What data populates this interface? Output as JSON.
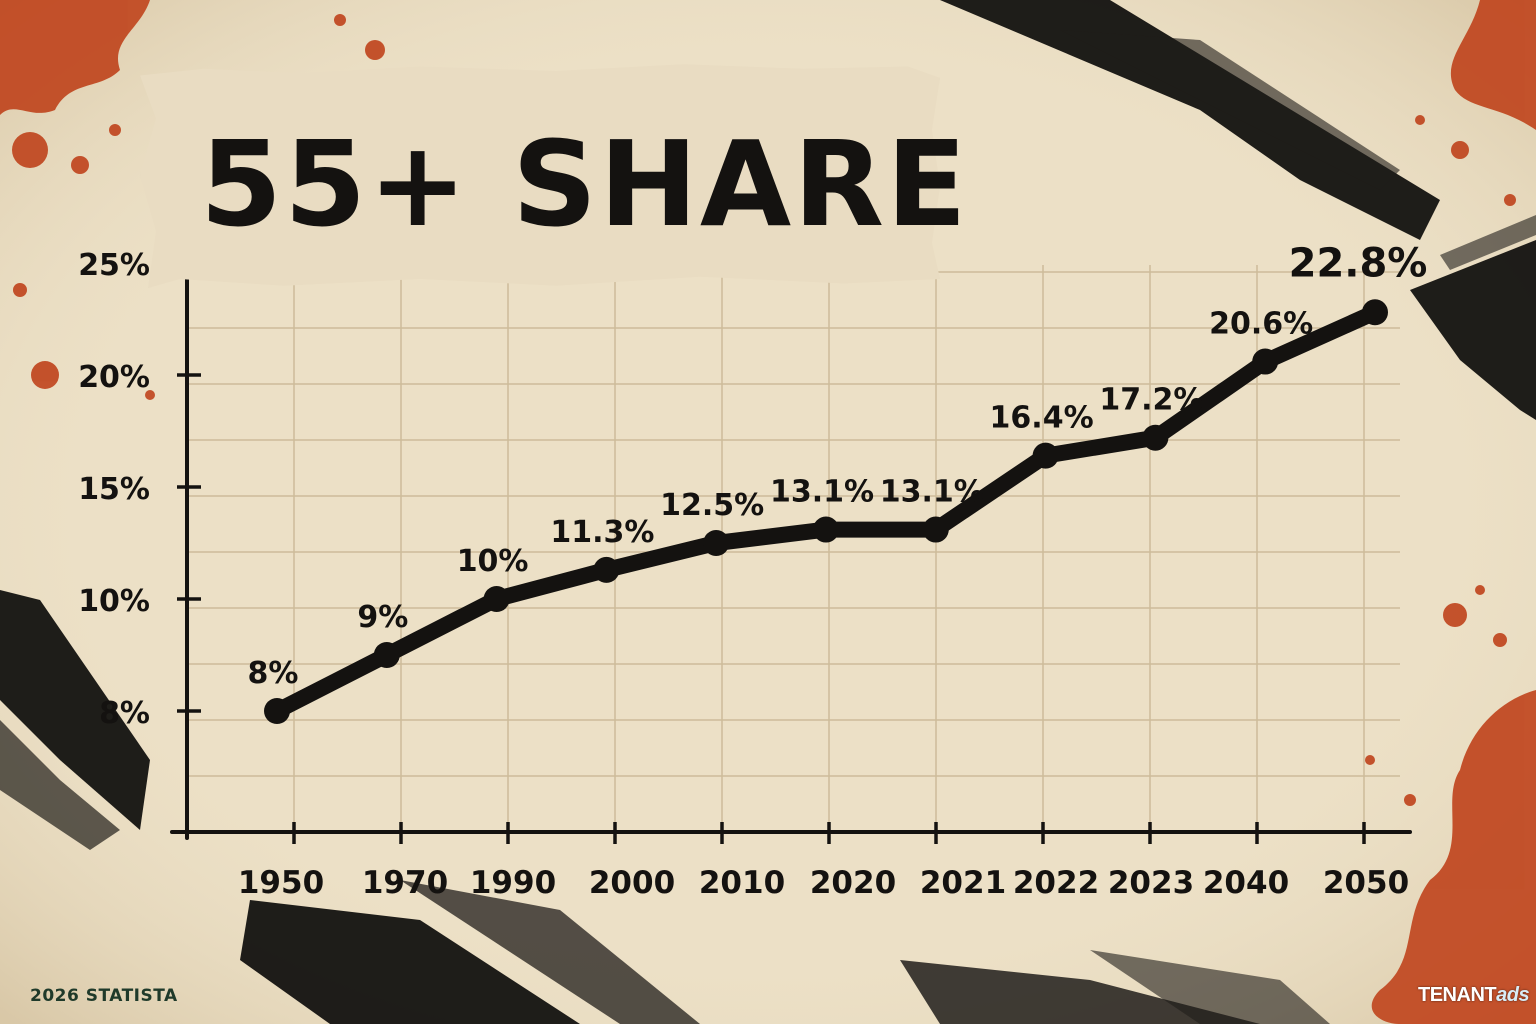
{
  "title": "55+ SHARE",
  "footer_source": "2026 STATISTA",
  "brand": {
    "name": "TENANT",
    "accent": "ads"
  },
  "colors": {
    "background": "#ece0c6",
    "line": "#141210",
    "splatter": "#c0461f",
    "brush": "#141210",
    "grid": "#cdbb9a"
  },
  "chart_data": {
    "type": "line",
    "title": "55+ SHARE",
    "xlabel": "",
    "ylabel": "",
    "categories": [
      "1950",
      "1970",
      "1990",
      "2000",
      "2010",
      "2020",
      "2021",
      "2022",
      "2023",
      "2040",
      "2050"
    ],
    "y_tick_labels": [
      "8%",
      "10%",
      "15%",
      "20%",
      "25%"
    ],
    "y_tick_values": [
      8,
      10,
      15,
      20,
      25
    ],
    "grid": true,
    "points": [
      {
        "value": 8,
        "label": "8%"
      },
      {
        "value": 9,
        "label": "9%"
      },
      {
        "value": 10,
        "label": "10%"
      },
      {
        "value": 11.3,
        "label": "11.3%"
      },
      {
        "value": 12.5,
        "label": "12.5%"
      },
      {
        "value": 13.1,
        "label": "13.1%"
      },
      {
        "value": 13.1,
        "label": "13.1%"
      },
      {
        "value": 16.4,
        "label": "16.4%"
      },
      {
        "value": 17.2,
        "label": "17.2%"
      },
      {
        "value": 20.6,
        "label": "20.6%"
      },
      {
        "value": 22.8,
        "label": "22.8%"
      }
    ]
  }
}
